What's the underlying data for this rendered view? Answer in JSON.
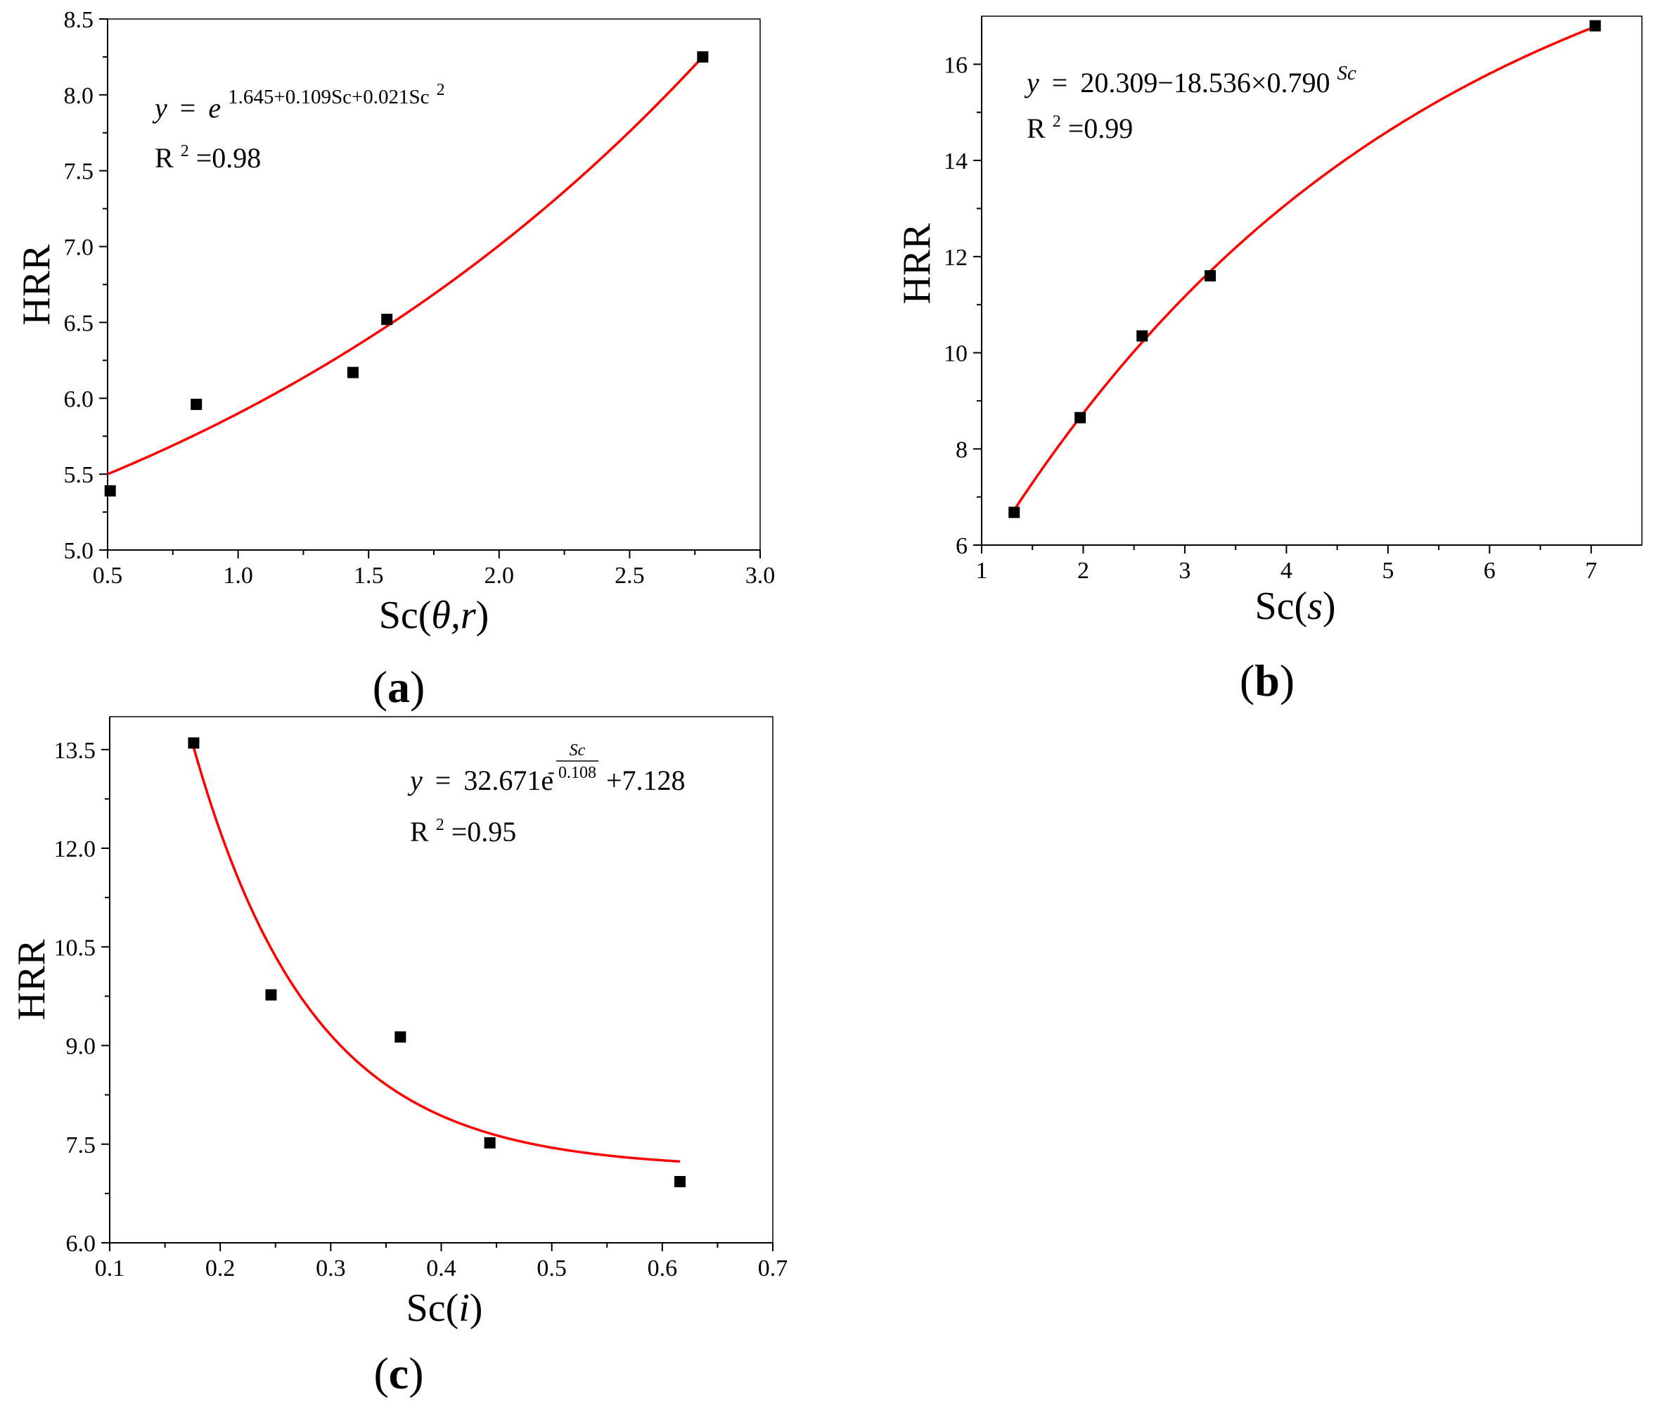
{
  "panels": [
    {
      "id": "a",
      "panel_label": "(a)",
      "panel_label_letter": "a",
      "equation": {
        "y": "y",
        "eq": "=",
        "e": "e",
        "exponent": "1.645+0.109Sc+0.021Sc",
        "exponent_power": "2"
      },
      "r2": {
        "r": "R",
        "sup": "2",
        "value": "=0.98"
      },
      "ylabel": "HRR",
      "xlabel_prefix": "Sc(",
      "xlabel_var": "θ,r",
      "xlabel_suffix": ")",
      "xticks": [
        "0.5",
        "1.0",
        "1.5",
        "2.0",
        "2.5",
        "3.0"
      ],
      "yticks": [
        "5.0",
        "5.5",
        "6.0",
        "6.5",
        "7.0",
        "7.5",
        "8.0",
        "8.5"
      ]
    },
    {
      "id": "b",
      "panel_label": "(b)",
      "panel_label_letter": "b",
      "equation": {
        "y": "y",
        "eq": "=",
        "body": "20.309−18.536×0.790",
        "exponent": "Sc"
      },
      "r2": {
        "r": "R",
        "sup": "2",
        "value": "=0.99"
      },
      "ylabel": "HRR",
      "xlabel_prefix": "Sc(",
      "xlabel_var": "s",
      "xlabel_suffix": ")",
      "xticks": [
        "1",
        "2",
        "3",
        "4",
        "5",
        "6",
        "7"
      ],
      "yticks": [
        "6",
        "8",
        "10",
        "12",
        "14",
        "16"
      ]
    },
    {
      "id": "c",
      "panel_label": "(c)",
      "panel_label_letter": "c",
      "equation": {
        "y": "y",
        "eq": "=",
        "coef": "32.671e",
        "exp_minus": "-",
        "exp_num": "Sc",
        "exp_den": "0.108",
        "tail": "+7.128"
      },
      "r2": {
        "r": "R",
        "sup": "2",
        "value": "=0.95"
      },
      "ylabel": "HRR",
      "xlabel_prefix": "Sc(",
      "xlabel_var": "i",
      "xlabel_suffix": ")",
      "xticks": [
        "0.1",
        "0.2",
        "0.3",
        "0.4",
        "0.5",
        "0.6",
        "0.7"
      ],
      "yticks": [
        "6.0",
        "7.5",
        "9.0",
        "10.5",
        "12.0",
        "13.5"
      ]
    }
  ],
  "chart_data": [
    {
      "type": "scatter",
      "title": "(a)",
      "xlabel": "Sc(θ,r)",
      "ylabel": "HRR",
      "xlim": [
        0.5,
        3.0
      ],
      "ylim": [
        5.0,
        8.5
      ],
      "grid": false,
      "series": [
        {
          "x": [
            0.51,
            0.84,
            1.44,
            1.57,
            2.78
          ],
          "y": [
            5.39,
            5.96,
            6.17,
            6.52,
            8.25
          ]
        }
      ],
      "fit": {
        "equation": "y = e^(1.645+0.109Sc+0.021Sc^2)",
        "r_squared": 0.98,
        "x_range": [
          0.5,
          2.78
        ],
        "color": "#ff0000"
      },
      "marker_color": "#000000"
    },
    {
      "type": "scatter",
      "title": "(b)",
      "xlabel": "Sc(s)",
      "ylabel": "HRR",
      "xlim": [
        1,
        7.5
      ],
      "ylim": [
        6,
        17
      ],
      "grid": false,
      "series": [
        {
          "x": [
            1.32,
            1.97,
            2.58,
            3.25,
            7.04
          ],
          "y": [
            6.68,
            8.65,
            10.35,
            11.6,
            16.8
          ]
        }
      ],
      "fit": {
        "equation": "y = 20.309 - 18.536×0.790^Sc",
        "r_squared": 0.99,
        "x_range": [
          1.3,
          7.04
        ],
        "color": "#ff0000"
      },
      "marker_color": "#000000"
    },
    {
      "type": "scatter",
      "title": "(c)",
      "xlabel": "Sc(i)",
      "ylabel": "HRR",
      "xlim": [
        0.1,
        0.7
      ],
      "ylim": [
        6.0,
        14.0
      ],
      "grid": false,
      "series": [
        {
          "x": [
            0.176,
            0.246,
            0.363,
            0.444,
            0.616
          ],
          "y": [
            13.6,
            9.77,
            9.13,
            7.52,
            6.93
          ]
        }
      ],
      "fit": {
        "equation": "y = 32.671e^(-Sc/0.108) + 7.128",
        "r_squared": 0.95,
        "x_range": [
          0.176,
          0.616
        ],
        "color": "#ff0000"
      },
      "marker_color": "#000000"
    }
  ]
}
